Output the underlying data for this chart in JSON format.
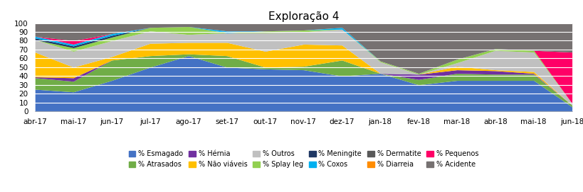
{
  "title": "Exploração 4",
  "x_labels": [
    "abr-17",
    "mai-17",
    "jun-17",
    "jul-17",
    "ago-17",
    "set-17",
    "out-17",
    "nov-17",
    "dez-17",
    "jan-18",
    "fev-18",
    "mar-18",
    "abr-18",
    "mai-18",
    "jun-18"
  ],
  "series": {
    "% Esmagado": [
      25,
      22,
      35,
      50,
      63,
      50,
      48,
      47,
      40,
      43,
      30,
      35,
      35,
      35,
      5
    ],
    "% Atrasados": [
      13,
      12,
      23,
      13,
      2,
      13,
      2,
      4,
      18,
      0,
      6,
      8,
      7,
      7,
      2
    ],
    "% Hérnia": [
      1,
      4,
      0,
      0,
      0,
      0,
      0,
      0,
      0,
      0,
      6,
      4,
      4,
      1,
      0
    ],
    "% Não viáveis": [
      28,
      12,
      4,
      14,
      13,
      15,
      18,
      25,
      17,
      0,
      0,
      4,
      1,
      2,
      0
    ],
    "% Outros": [
      14,
      18,
      18,
      14,
      9,
      11,
      21,
      14,
      18,
      13,
      0,
      4,
      22,
      22,
      2
    ],
    "% Splay leg": [
      0,
      4,
      4,
      4,
      9,
      0,
      2,
      2,
      0,
      1,
      1,
      4,
      2,
      2,
      0
    ],
    "% Meningite": [
      2,
      2,
      2,
      0,
      0,
      0,
      0,
      0,
      0,
      0,
      0,
      0,
      0,
      0,
      0
    ],
    "% Coxos": [
      2,
      2,
      2,
      0,
      0,
      2,
      0,
      0,
      2,
      0,
      0,
      0,
      0,
      0,
      0
    ],
    "% Dermatite": [
      0,
      0,
      0,
      0,
      0,
      0,
      0,
      0,
      0,
      0,
      0,
      0,
      0,
      0,
      0
    ],
    "% Diarreia": [
      0,
      0,
      0,
      0,
      0,
      0,
      0,
      0,
      0,
      0,
      0,
      0,
      0,
      0,
      0
    ],
    "% Pequenos": [
      0,
      4,
      0,
      0,
      0,
      0,
      0,
      0,
      0,
      0,
      0,
      0,
      0,
      0,
      58
    ],
    "% Acidente": [
      15,
      20,
      12,
      5,
      4,
      9,
      9,
      8,
      5,
      43,
      57,
      41,
      29,
      31,
      33
    ]
  },
  "colors": {
    "% Esmagado": "#4472C4",
    "% Atrasados": "#70AD47",
    "% Hérnia": "#7030A0",
    "% Não viáveis": "#FFC000",
    "% Outros": "#C0C0C0",
    "% Splay leg": "#92D050",
    "% Meningite": "#1F3864",
    "% Coxos": "#00B0F0",
    "% Dermatite": "#595959",
    "% Diarreia": "#FF8C00",
    "% Pequenos": "#FF0066",
    "% Acidente": "#767171"
  },
  "ylim": [
    0,
    100
  ],
  "legend_order": [
    "% Esmagado",
    "% Atrasados",
    "% Hérnia",
    "% Não viáveis",
    "% Outros",
    "% Splay leg",
    "% Meningite",
    "% Coxos",
    "% Dermatite",
    "% Diarreia",
    "% Pequenos",
    "% Acidente"
  ],
  "legend_row1": [
    "% Esmagado",
    "% Atrasados",
    "% Hérnia",
    "% Não viáveis",
    "% Outros",
    "% Splay leg"
  ],
  "legend_row2": [
    "% Meningite",
    "% Coxos",
    "% Dermatite",
    "% Diarreia",
    "% Pequenos",
    "% Acidente"
  ]
}
